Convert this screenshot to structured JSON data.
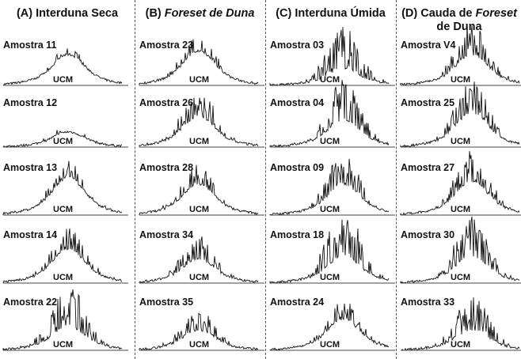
{
  "chart_data": {
    "type": "line",
    "title": "",
    "xlabel": "",
    "ylabel": "",
    "annotation": "UCM",
    "columns": [
      {
        "prefix": "(A) ",
        "title": "Interduna Seca",
        "title_italic": "",
        "title_suffix": "",
        "samples": [
          "Amostra 11",
          "Amostra 12",
          "Amostra 13",
          "Amostra 14",
          "Amostra 22"
        ]
      },
      {
        "prefix": "(B) ",
        "title": "",
        "title_italic": "Foreset de Duna",
        "title_suffix": "",
        "samples": [
          "Amostra 23",
          "Amostra 26",
          "Amostra 28",
          "Amostra 34",
          "Amostra 35"
        ]
      },
      {
        "prefix": "(C) ",
        "title": "Interduna Úmida",
        "title_italic": "",
        "title_suffix": "",
        "samples": [
          "Amostra 03",
          "Amostra 04",
          "Amostra 09",
          "Amostra 18",
          "Amostra 24"
        ]
      },
      {
        "prefix": "(D) ",
        "title": "Cauda de ",
        "title_italic": "Foreset",
        "title_suffix": " de Duna",
        "samples": [
          "Amostra V4",
          "Amostra 25",
          "Amostra 27",
          "Amostra 30",
          "Amostra 33"
        ]
      }
    ]
  }
}
